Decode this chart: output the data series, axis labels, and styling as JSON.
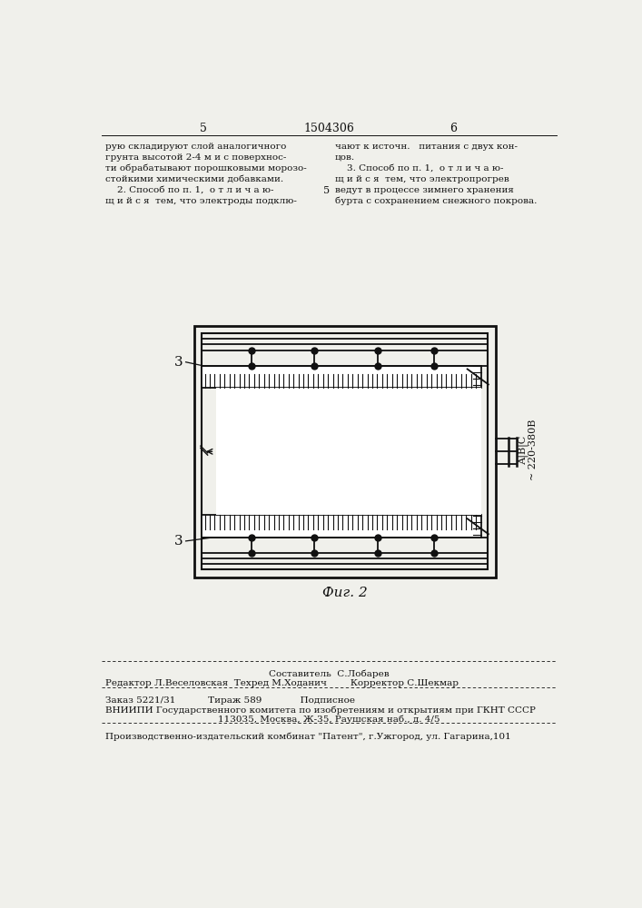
{
  "bg_color": "#f0f0eb",
  "text_color": "#111111",
  "page_num_left": "5",
  "page_num_right": "6",
  "patent_num": "1504306",
  "fig_caption": "Фиг. 2",
  "label_3_top": "3",
  "label_3_bot": "3",
  "voltage_label": "~ 220-380В",
  "phase_label": "А|В|С",
  "left_lines": [
    "рую складируют слой аналогичного",
    "грунта высотой 2-4 м и с поверхнос-",
    "ти обрабатывают порошковыми морозо-",
    "стойкими химическими добавками.",
    "    2. Способ по п. 1,  о т л и ч а ю-",
    "щ и й с я  тем, что электроды подклю-"
  ],
  "right_lines": [
    "чают к источн.   питания с двух кон-",
    "цов.",
    "    3. Способ по п. 1,  о т л и ч а ю-",
    "щ и й с я  тем, что электропрогрев",
    "ведут в процессе зимнего хранения",
    "бурта с сохранением снежного покрова."
  ],
  "footer_line1": "Составитель  С.Лобарев",
  "footer_line2": "Редактор Л.Веселовская  Техред М.Ходанич        Корректор С.Шекмар",
  "footer_line3": "Заказ 5221/31           Тираж 589             Подписное",
  "footer_line4": "ВНИИПИ Государственного комитета по изобретениям и открытиям при ГКНТ СССР",
  "footer_line5": "113035, Москва, Ж-35, Раушская наб., д. 4/5",
  "footer_line6": "Производственно-издательский комбинат \"Патент\", г.Ужгород, ул. Гагарина,101"
}
